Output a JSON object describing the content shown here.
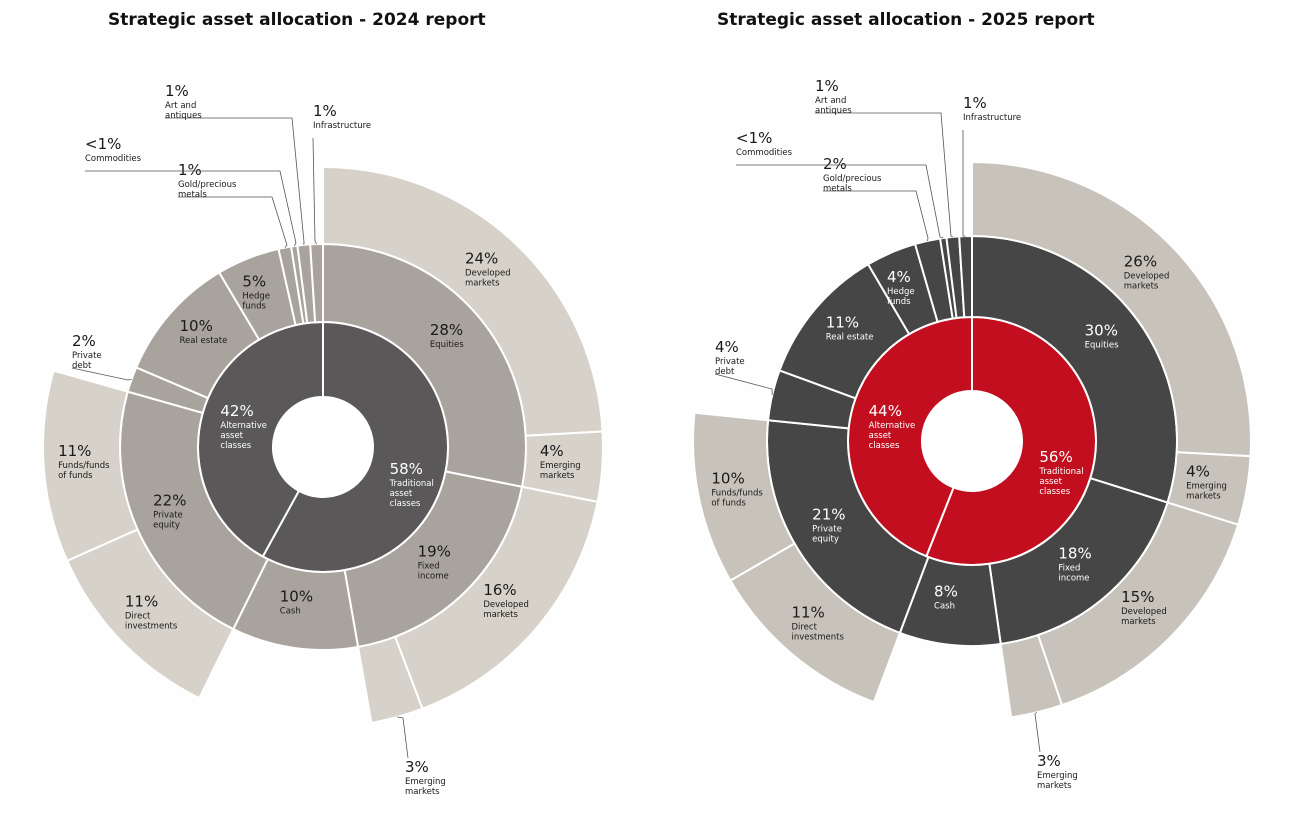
{
  "chart_data": [
    {
      "type": "sunburst",
      "title": "Strategic asset allocation - 2024 report",
      "colors": {
        "inner": "#5a5859",
        "middle": "#a9a39e",
        "outer": "#d6d2c9",
        "text_dark": "#1a1a1a",
        "text_light": "#ffffff"
      },
      "inner": [
        {
          "label": "Traditional asset classes",
          "value": 58,
          "pct": "58%"
        },
        {
          "label": "Alternative asset classes",
          "value": 42,
          "pct": "42%"
        }
      ],
      "middle": [
        {
          "label": "Equities",
          "value": 28,
          "pct": "28%"
        },
        {
          "label": "Fixed income",
          "value": 19,
          "pct": "19%"
        },
        {
          "label": "Cash",
          "value": 10,
          "pct": "10%"
        },
        {
          "label": "Private equity",
          "value": 22,
          "pct": "22%"
        },
        {
          "label": "Private debt",
          "value": 2,
          "pct": "2%"
        },
        {
          "label": "Real estate",
          "value": 10,
          "pct": "10%"
        },
        {
          "label": "Hedge funds",
          "value": 5,
          "pct": "5%"
        },
        {
          "label": "Gold/precious metals",
          "value": 1,
          "pct": "1%"
        },
        {
          "label": "Commodities",
          "value": 0.5,
          "pct": "<1%"
        },
        {
          "label": "Art and antiques",
          "value": 1,
          "pct": "1%"
        },
        {
          "label": "Infrastructure",
          "value": 1,
          "pct": "1%"
        }
      ],
      "outer": [
        {
          "parent": "Equities",
          "label": "Developed markets",
          "value": 24,
          "pct": "24%"
        },
        {
          "parent": "Equities",
          "label": "Emerging markets",
          "value": 4,
          "pct": "4%"
        },
        {
          "parent": "Fixed income",
          "label": "Developed markets",
          "value": 16,
          "pct": "16%"
        },
        {
          "parent": "Fixed income",
          "label": "Emerging markets",
          "value": 3,
          "pct": "3%"
        },
        {
          "parent": "Private equity",
          "label": "Direct investments",
          "value": 11,
          "pct": "11%"
        },
        {
          "parent": "Private equity",
          "label": "Funds/funds of funds",
          "value": 11,
          "pct": "11%"
        }
      ]
    },
    {
      "type": "sunburst",
      "title": "Strategic asset allocation - 2025 report",
      "colors": {
        "inner": "#c20e1e",
        "middle": "#464646",
        "outer": "#c7c2ba",
        "text_dark": "#1a1a1a",
        "text_light": "#ffffff"
      },
      "inner": [
        {
          "label": "Traditional asset classes",
          "value": 56,
          "pct": "56%"
        },
        {
          "label": "Alternative asset classes",
          "value": 44,
          "pct": "44%"
        }
      ],
      "middle": [
        {
          "label": "Equities",
          "value": 30,
          "pct": "30%"
        },
        {
          "label": "Fixed income",
          "value": 18,
          "pct": "18%"
        },
        {
          "label": "Cash",
          "value": 8,
          "pct": "8%"
        },
        {
          "label": "Private equity",
          "value": 21,
          "pct": "21%"
        },
        {
          "label": "Private debt",
          "value": 4,
          "pct": "4%"
        },
        {
          "label": "Real estate",
          "value": 11,
          "pct": "11%"
        },
        {
          "label": "Hedge funds",
          "value": 4,
          "pct": "4%"
        },
        {
          "label": "Gold/precious metals",
          "value": 2,
          "pct": "2%"
        },
        {
          "label": "Commodities",
          "value": 0.5,
          "pct": "<1%"
        },
        {
          "label": "Art and antiques",
          "value": 1,
          "pct": "1%"
        },
        {
          "label": "Infrastructure",
          "value": 1,
          "pct": "1%"
        }
      ],
      "outer": [
        {
          "parent": "Equities",
          "label": "Developed markets",
          "value": 26,
          "pct": "26%"
        },
        {
          "parent": "Equities",
          "label": "Emerging markets",
          "value": 4,
          "pct": "4%"
        },
        {
          "parent": "Fixed income",
          "label": "Developed markets",
          "value": 15,
          "pct": "15%"
        },
        {
          "parent": "Fixed income",
          "label": "Emerging markets",
          "value": 3,
          "pct": "3%"
        },
        {
          "parent": "Private equity",
          "label": "Direct investments",
          "value": 11,
          "pct": "11%"
        },
        {
          "parent": "Private equity",
          "label": "Funds/funds of funds",
          "value": 10,
          "pct": "10%"
        }
      ]
    }
  ]
}
